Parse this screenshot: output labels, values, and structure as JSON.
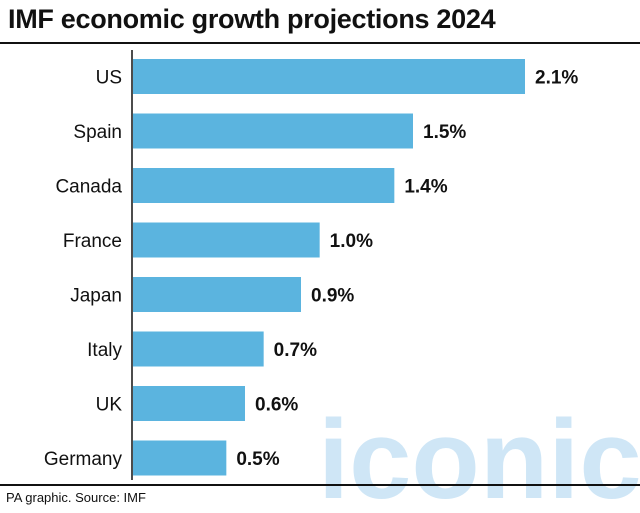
{
  "chart_data": {
    "type": "bar",
    "orientation": "horizontal",
    "title": "IMF economic growth projections 2024",
    "categories": [
      "US",
      "Spain",
      "Canada",
      "France",
      "Japan",
      "Italy",
      "UK",
      "Germany"
    ],
    "values": [
      2.1,
      1.5,
      1.4,
      1.0,
      0.9,
      0.7,
      0.6,
      0.5
    ],
    "value_labels": [
      "2.1%",
      "1.5%",
      "1.4%",
      "1.0%",
      "0.9%",
      "0.7%",
      "0.6%",
      "0.5%"
    ],
    "xlim": [
      0,
      2.1
    ],
    "bar_color": "#5bb4df",
    "grid": false,
    "legend": "none"
  },
  "source": "PA graphic. Source: IMF",
  "watermark": {
    "text": "iconic",
    "color": "#a8d3f0"
  }
}
